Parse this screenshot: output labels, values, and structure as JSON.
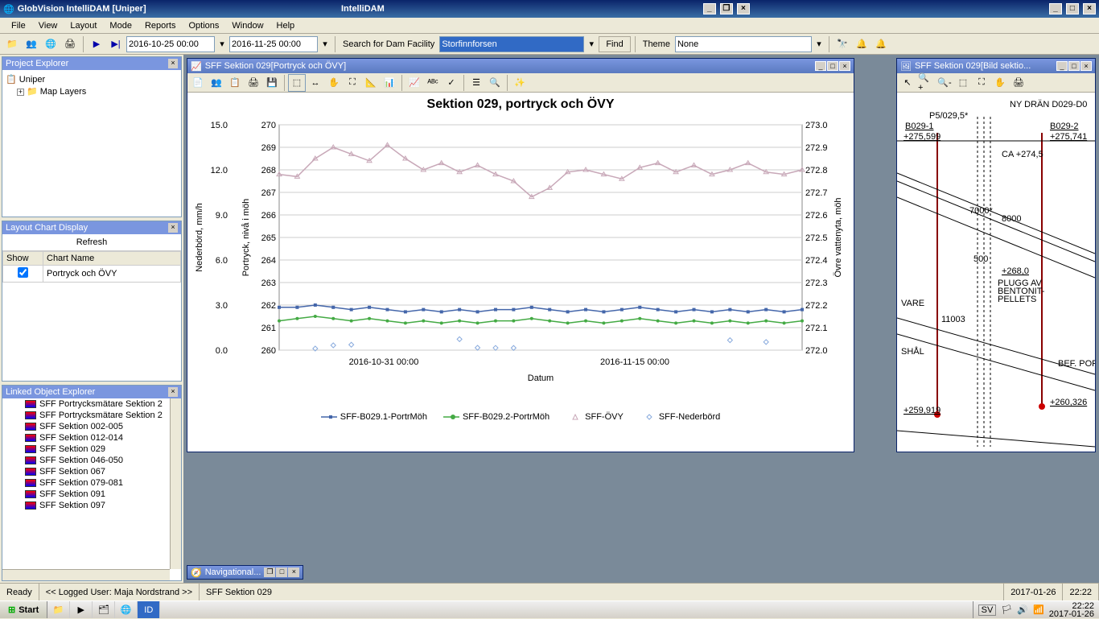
{
  "app": {
    "outer_title": "IntelliDAM",
    "title": "GlobVision IntelliDAM [Uniper]"
  },
  "menu": [
    "File",
    "View",
    "Layout",
    "Mode",
    "Reports",
    "Options",
    "Window",
    "Help"
  ],
  "toolbar": {
    "date_from": "2016-10-25 00:00",
    "date_to": "2016-11-25 00:00",
    "search_label": "Search for Dam Facility",
    "search_value": "Storfinnforsen",
    "find_label": "Find",
    "theme_label": "Theme",
    "theme_value": "None"
  },
  "project_explorer": {
    "title": "Project Explorer",
    "root": "Uniper",
    "child": "Map Layers"
  },
  "layout_panel": {
    "title": "Layout Chart Display",
    "refresh": "Refresh",
    "col_show": "Show",
    "col_name": "Chart Name",
    "rows": [
      {
        "checked": true,
        "name": "Portryck och ÖVY"
      }
    ]
  },
  "linked_panel": {
    "title": "Linked Object Explorer",
    "items": [
      "SFF Portrycksmätare Sektion 2",
      "SFF Portrycksmätare Sektion 2",
      "SFF Sektion 002-005",
      "SFF Sektion 012-014",
      "SFF Sektion 029",
      "SFF Sektion 046-050",
      "SFF Sektion 067",
      "SFF Sektion 079-081",
      "SFF Sektion 091",
      "SFF Sektion 097"
    ]
  },
  "chart_window": {
    "title": "SFF Sektion 029[Portryck och ÖVY]",
    "chart": {
      "title": "Sektion 029, portryck och ÖVY",
      "x_label": "Datum",
      "y1_label": "Nederbörd, mm/h",
      "y2_label": "Portryck, nivå i möh",
      "y3_label": "Övre vattenyta, möh",
      "y1_min": 0.0,
      "y1_max": 15.0,
      "y1_step": 3.0,
      "y2_min": 260,
      "y2_max": 270,
      "y2_step": 1,
      "y3_min": 272.0,
      "y3_max": 273.0,
      "y3_step": 0.1,
      "x_ticks": [
        "2016-10-31 00:00",
        "2016-11-15 00:00"
      ],
      "colors": {
        "b029_1": "#4466aa",
        "b029_2": "#44aa44",
        "ovy": "#c8a8b8",
        "neder": "#88aadd",
        "grid": "#cccccc",
        "bg": "#ffffff"
      },
      "series": {
        "b029_1": [
          261.9,
          261.9,
          262.0,
          261.9,
          261.8,
          261.9,
          261.8,
          261.7,
          261.8,
          261.7,
          261.8,
          261.7,
          261.8,
          261.8,
          261.9,
          261.8,
          261.7,
          261.8,
          261.7,
          261.8,
          261.9,
          261.8,
          261.7,
          261.8,
          261.7,
          261.8,
          261.7,
          261.8,
          261.7,
          261.8
        ],
        "b029_2": [
          261.3,
          261.4,
          261.5,
          261.4,
          261.3,
          261.4,
          261.3,
          261.2,
          261.3,
          261.2,
          261.3,
          261.2,
          261.3,
          261.3,
          261.4,
          261.3,
          261.2,
          261.3,
          261.2,
          261.3,
          261.4,
          261.3,
          261.2,
          261.3,
          261.2,
          261.3,
          261.2,
          261.3,
          261.2,
          261.3
        ],
        "ovy": [
          267.8,
          267.7,
          268.5,
          269.0,
          268.7,
          268.4,
          269.1,
          268.5,
          268.0,
          268.3,
          267.9,
          268.2,
          267.8,
          267.5,
          266.8,
          267.2,
          267.9,
          268.0,
          267.8,
          267.6,
          268.1,
          268.3,
          267.9,
          268.2,
          267.8,
          268.0,
          268.3,
          267.9,
          267.8,
          268.0
        ]
      },
      "legend": [
        {
          "label": "SFF-B029.1-PortrMöh",
          "color": "#4466aa",
          "marker": "square"
        },
        {
          "label": "SFF-B029.2-PortrMöh",
          "color": "#44aa44",
          "marker": "circle"
        },
        {
          "label": "SFF-ÖVY",
          "color": "#c8a8b8",
          "marker": "triangle"
        },
        {
          "label": "SFF-Nederbörd",
          "color": "#88aadd",
          "marker": "diamond"
        }
      ]
    }
  },
  "section_window": {
    "title": "SFF Sektion 029[Bild sektio...",
    "labels": {
      "ny_dran": "NY DRÄN D029-D0",
      "p5": "P5/029,5*",
      "b029_1": "B029-1",
      "b029_2": "B029-2",
      "lvl_1": "+275,599",
      "lvl_2": "+275,741",
      "ca": "CA +274,5",
      "n7000": "7000*",
      "n8000": "8000",
      "n500": "500",
      "lvl_268": "+268,0",
      "plugg": "PLUGG AV\nBENTONIT-\nPELLETS",
      "vare": "VARE",
      "n11003": "11003",
      "shal": "SHÅL",
      "bef_port": "BEF. PORT",
      "lvl_259": "+259,919",
      "lvl_260": "+260,326"
    }
  },
  "nav_mini": "Navigational...",
  "status": {
    "ready": "Ready",
    "user": "<< Logged User: Maja Nordstrand >>",
    "context": "SFF Sektion 029",
    "date": "2017-01-26",
    "time": "22:22"
  },
  "taskbar": {
    "start": "Start",
    "lang": "SV",
    "time": "22:22",
    "date": "2017-01-26"
  }
}
